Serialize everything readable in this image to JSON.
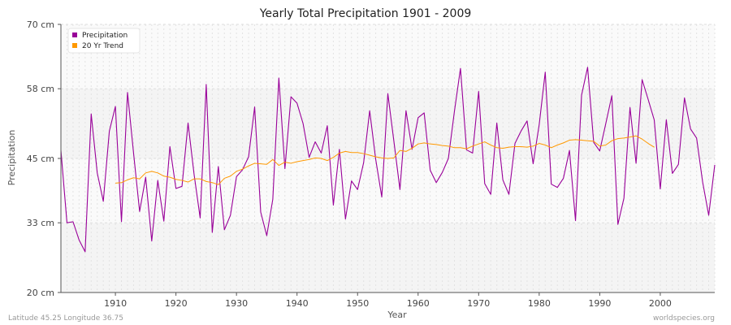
{
  "chart_data": {
    "type": "line",
    "title": "Yearly Total Precipitation 1901 - 2009",
    "xlabel": "Year",
    "ylabel": "Precipitation",
    "xlim": [
      1901,
      2009
    ],
    "ylim": [
      20,
      70
    ],
    "y_ticks": [
      {
        "value": 20,
        "label": "20 cm"
      },
      {
        "value": 33,
        "label": "33 cm"
      },
      {
        "value": 45,
        "label": "45 cm"
      },
      {
        "value": 58,
        "label": "58 cm"
      },
      {
        "value": 70,
        "label": "70 cm"
      }
    ],
    "x_ticks": [
      1910,
      1920,
      1930,
      1940,
      1950,
      1960,
      1970,
      1980,
      1990,
      2000
    ],
    "grid": true,
    "legend_position": "top-left",
    "series": [
      {
        "name": "Precipitation",
        "color": "#990099",
        "x_start": 1901,
        "values": [
          46.5,
          33.0,
          33.2,
          29.8,
          27.6,
          53.3,
          42.3,
          37.0,
          50.1,
          54.7,
          33.2,
          57.3,
          46.0,
          35.1,
          41.5,
          29.6,
          40.9,
          33.3,
          47.2,
          39.4,
          39.8,
          51.6,
          42.0,
          33.9,
          58.8,
          31.2,
          43.5,
          31.7,
          34.4,
          41.6,
          42.9,
          45.3,
          54.6,
          35.0,
          30.6,
          37.4,
          60.0,
          43.1,
          56.5,
          55.3,
          51.5,
          45.2,
          48.1,
          46.0,
          51.1,
          36.3,
          46.7,
          33.7,
          40.8,
          39.2,
          44.2,
          53.9,
          44.8,
          37.8,
          57.1,
          48.2,
          39.2,
          53.9,
          46.7,
          52.6,
          53.5,
          42.8,
          40.5,
          42.4,
          45.0,
          53.8,
          61.8,
          46.6,
          46.0,
          57.5,
          40.3,
          38.3,
          51.6,
          41.0,
          38.3,
          47.8,
          50.1,
          52.0,
          44.0,
          51.3,
          61.1,
          40.2,
          39.6,
          41.3,
          46.5,
          33.4,
          56.8,
          62.0,
          48.0,
          46.4,
          51.5,
          56.7,
          32.7,
          37.6,
          54.5,
          44.1,
          59.7,
          56.0,
          52.2,
          39.3,
          52.2,
          42.2,
          43.9,
          56.3,
          50.5,
          48.8,
          40.6,
          34.4,
          43.8
        ]
      },
      {
        "name": "20 Yr Trend",
        "color": "#ff9900",
        "x_start": 1910,
        "values": [
          40.4,
          40.5,
          41.0,
          41.4,
          41.2,
          42.3,
          42.6,
          42.3,
          41.7,
          41.5,
          41.1,
          40.9,
          40.6,
          41.2,
          41.2,
          40.7,
          40.5,
          40.1,
          41.3,
          41.7,
          42.6,
          43.0,
          43.6,
          44.1,
          44.0,
          43.9,
          44.8,
          43.7,
          44.3,
          44.1,
          44.4,
          44.6,
          44.8,
          45.1,
          45.0,
          44.6,
          45.2,
          46.0,
          46.3,
          46.1,
          46.1,
          45.9,
          45.6,
          45.3,
          45.1,
          45.0,
          45.1,
          46.5,
          46.3,
          46.9,
          47.7,
          47.9,
          47.7,
          47.6,
          47.4,
          47.3,
          47.0,
          47.0,
          46.8,
          47.3,
          47.7,
          48.1,
          47.5,
          47.0,
          46.9,
          47.1,
          47.2,
          47.2,
          47.1,
          47.3,
          47.8,
          47.5,
          47.0,
          47.5,
          47.9,
          48.4,
          48.5,
          48.4,
          48.3,
          48.2,
          47.3,
          47.5,
          48.3,
          48.7,
          48.8,
          49.0,
          49.2,
          48.6,
          47.8,
          47.1
        ]
      }
    ]
  },
  "footer": {
    "left": "Latitude 45.25 Longitude 36.75",
    "right": "worldspecies.org"
  }
}
